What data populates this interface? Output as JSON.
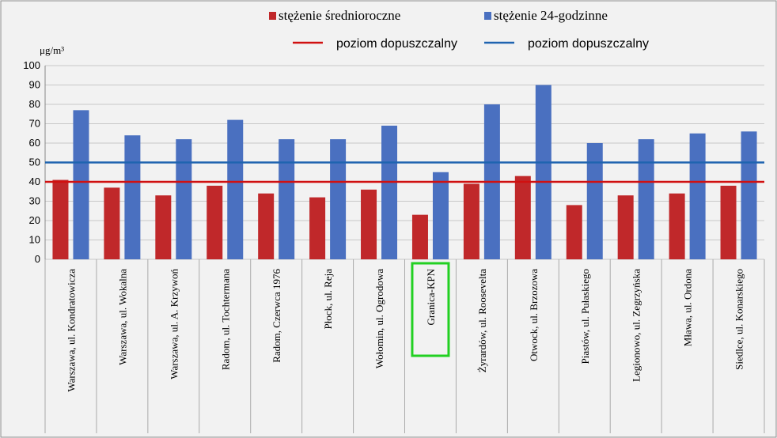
{
  "chart_data": {
    "type": "bar",
    "y_unit": "μg/m³",
    "categories": [
      "Warszawa, ul. Kondratowicza",
      "Warszawa, ul. Wokalna",
      "Warszawa, ul. A. Krzywoń",
      "Radom, ul. Tochtermana",
      "Radom, Czerwca 1976",
      "Płock, ul. Reja",
      "Wołomin, ul. Ogrodowa",
      "Granica-KPN",
      "Żyrardów, ul. Roosevelta",
      "Otwock, ul. Brzozowa",
      "Piastów, ul. Pułaskiego",
      "Legionowo, ul. Zegrzyńska",
      "Mława, ul. Ordona",
      "Siedlce, ul. Konarskiego"
    ],
    "series": [
      {
        "name": "stężenie średnioroczne",
        "color": "#c0282a",
        "values": [
          41,
          37,
          33,
          38,
          34,
          32,
          36,
          23,
          39,
          43,
          28,
          33,
          34,
          38
        ]
      },
      {
        "name": "stężenie 24-godzinne",
        "color": "#4a70c0",
        "values": [
          77,
          64,
          62,
          72,
          62,
          62,
          69,
          45,
          80,
          90,
          60,
          62,
          65,
          66
        ]
      }
    ],
    "reference_lines": [
      {
        "name": "poziom dopuszczalny",
        "value": 40,
        "color": "#d01010"
      },
      {
        "name": "poziom dopuszczalny",
        "value": 50,
        "color": "#1f64b0"
      }
    ],
    "highlight": {
      "index": 7,
      "color": "#22d022"
    },
    "ylim": [
      0,
      100
    ],
    "yticks": [
      0,
      10,
      20,
      30,
      40,
      50,
      60,
      70,
      80,
      90,
      100
    ],
    "grid": true
  }
}
